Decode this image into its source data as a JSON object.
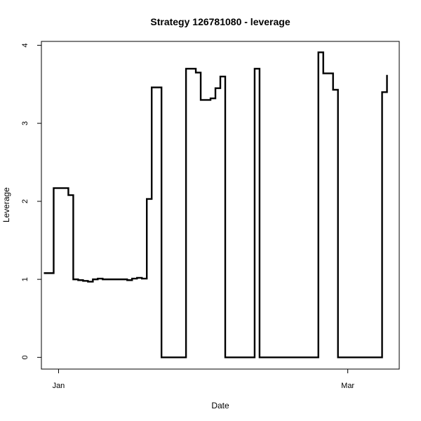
{
  "chart_data": {
    "type": "line",
    "line_style": "step",
    "title": "Strategy 126781080 - leverage",
    "xlabel": "Date",
    "ylabel": "Leverage",
    "x_ticks": [
      {
        "label": "Jan",
        "day": 0
      },
      {
        "label": "Mar",
        "day": 59
      }
    ],
    "y_ticks": [
      0,
      1,
      2,
      3,
      4
    ],
    "xlim": [
      -3.5,
      69.5
    ],
    "ylim": [
      -0.15,
      4.05
    ],
    "color": "#000000",
    "series": [
      {
        "x": [
          -3,
          -1,
          0,
          2,
          3,
          4,
          5,
          6,
          7,
          8,
          9,
          10,
          11,
          12,
          13,
          14,
          15,
          16,
          17,
          18,
          19,
          20,
          21,
          22,
          23,
          24,
          25,
          26,
          27,
          28,
          29,
          30,
          31,
          32,
          33,
          34,
          35,
          36,
          37,
          38,
          39,
          40,
          41,
          42,
          43,
          44,
          45,
          46,
          47,
          48,
          49,
          50,
          51,
          52,
          53,
          54,
          55,
          56,
          57,
          58,
          59,
          60,
          61,
          62,
          63,
          64,
          65,
          66,
          67
        ],
        "y": [
          1.08,
          2.17,
          2.17,
          2.08,
          1.0,
          0.99,
          0.98,
          0.97,
          1.0,
          1.01,
          1.0,
          1.0,
          1.0,
          1.0,
          1.0,
          0.99,
          1.01,
          1.02,
          1.01,
          2.03,
          3.46,
          3.46,
          0.0,
          0.0,
          0.0,
          0.0,
          0.0,
          3.7,
          3.7,
          3.65,
          3.3,
          3.3,
          3.32,
          3.45,
          3.6,
          0.0,
          0.0,
          0.0,
          0.0,
          0.0,
          0.0,
          3.7,
          0.0,
          0.0,
          0.0,
          0.0,
          0.0,
          0.0,
          0.0,
          0.0,
          0.0,
          0.0,
          0.0,
          0.0,
          3.91,
          3.64,
          3.64,
          3.43,
          0.0,
          0.0,
          0.0,
          0.0,
          0.0,
          0.0,
          0.0,
          0.0,
          0.0,
          3.4,
          3.62
        ]
      }
    ]
  }
}
